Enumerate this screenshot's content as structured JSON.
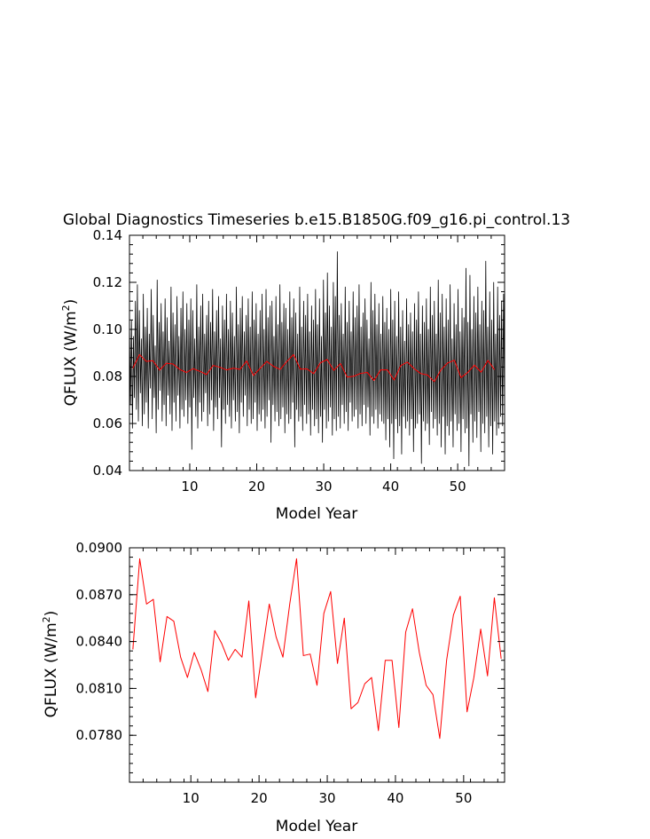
{
  "chart_data": [
    {
      "type": "line",
      "title": "Global Diagnostics Timeseries b.e15.B1850G.f09_g16.pi_control.13",
      "xlabel": "Model Year",
      "ylabel": "QFLUX (W/m",
      "ylabel_sup": "2",
      "ylabel_close": ")",
      "xlim": [
        1,
        57
      ],
      "ylim": [
        0.04,
        0.14
      ],
      "xticks": [
        10,
        20,
        30,
        40,
        50
      ],
      "xtick_labels": [
        "10",
        "20",
        "30",
        "40",
        "50"
      ],
      "yticks": [
        0.04,
        0.06,
        0.08,
        0.1,
        0.12,
        0.14
      ],
      "ytick_labels": [
        "0.04",
        "0.06",
        "0.08",
        "0.10",
        "0.12",
        "0.14"
      ],
      "grid": false,
      "series": [
        {
          "color": "#000000",
          "note_monthly": true,
          "values": [
            0.103,
            0.068,
            0.104,
            0.058,
            0.097,
            0.071,
            0.112,
            0.066,
            0.119,
            0.061,
            0.108,
            0.073,
            0.096,
            0.059,
            0.115,
            0.064,
            0.101,
            0.069,
            0.109,
            0.058,
            0.098,
            0.075,
            0.117,
            0.062,
            0.106,
            0.071,
            0.093,
            0.056,
            0.121,
            0.066,
            0.103,
            0.074,
            0.111,
            0.061,
            0.099,
            0.068,
            0.113,
            0.059,
            0.105,
            0.072,
            0.095,
            0.064,
            0.118,
            0.057,
            0.107,
            0.069,
            0.102,
            0.061,
            0.114,
            0.072,
            0.097,
            0.058,
            0.109,
            0.066,
            0.116,
            0.063,
            0.1,
            0.07,
            0.111,
            0.06,
            0.104,
            0.067,
            0.113,
            0.049,
            0.108,
            0.071,
            0.096,
            0.063,
            0.119,
            0.058,
            0.101,
            0.069,
            0.11,
            0.061,
            0.115,
            0.065,
            0.098,
            0.073,
            0.106,
            0.059,
            0.112,
            0.064,
            0.103,
            0.07,
            0.117,
            0.057,
            0.099,
            0.067,
            0.108,
            0.062,
            0.114,
            0.071,
            0.096,
            0.05,
            0.11,
            0.066,
            0.104,
            0.06,
            0.115,
            0.068,
            0.1,
            0.063,
            0.112,
            0.058,
            0.107,
            0.07,
            0.097,
            0.061,
            0.118,
            0.065,
            0.102,
            0.056,
            0.109,
            0.069,
            0.114,
            0.063,
            0.099,
            0.072,
            0.106,
            0.059,
            0.113,
            0.066,
            0.101,
            0.06,
            0.116,
            0.062,
            0.104,
            0.069,
            0.111,
            0.057,
            0.098,
            0.064,
            0.108,
            0.061,
            0.115,
            0.066,
            0.1,
            0.058,
            0.117,
            0.063,
            0.105,
            0.07,
            0.11,
            0.052,
            0.112,
            0.068,
            0.097,
            0.061,
            0.114,
            0.065,
            0.102,
            0.059,
            0.119,
            0.062,
            0.103,
            0.067,
            0.111,
            0.056,
            0.109,
            0.064,
            0.1,
            0.06,
            0.116,
            0.062,
            0.105,
            0.069,
            0.113,
            0.05,
            0.107,
            0.066,
            0.098,
            0.061,
            0.118,
            0.063,
            0.101,
            0.057,
            0.112,
            0.068,
            0.106,
            0.06,
            0.115,
            0.064,
            0.099,
            0.055,
            0.11,
            0.066,
            0.104,
            0.059,
            0.117,
            0.062,
            0.102,
            0.056,
            0.113,
            0.063,
            0.097,
            0.052,
            0.121,
            0.066,
            0.107,
            0.058,
            0.124,
            0.061,
            0.11,
            0.067,
            0.101,
            0.055,
            0.12,
            0.062,
            0.114,
            0.057,
            0.133,
            0.063,
            0.106,
            0.058,
            0.111,
            0.068,
            0.098,
            0.06,
            0.118,
            0.065,
            0.103,
            0.057,
            0.112,
            0.069,
            0.099,
            0.061,
            0.116,
            0.063,
            0.105,
            0.066,
            0.11,
            0.058,
            0.119,
            0.064,
            0.101,
            0.059,
            0.107,
            0.068,
            0.113,
            0.06,
            0.104,
            0.067,
            0.096,
            0.055,
            0.12,
            0.063,
            0.108,
            0.06,
            0.115,
            0.066,
            0.102,
            0.058,
            0.111,
            0.064,
            0.098,
            0.061,
            0.114,
            0.06,
            0.103,
            0.053,
            0.109,
            0.062,
            0.1,
            0.05,
            0.117,
            0.06,
            0.104,
            0.045,
            0.112,
            0.062,
            0.097,
            0.056,
            0.116,
            0.059,
            0.101,
            0.047,
            0.108,
            0.063,
            0.095,
            0.058,
            0.113,
            0.061,
            0.102,
            0.055,
            0.107,
            0.062,
            0.099,
            0.048,
            0.111,
            0.058,
            0.104,
            0.06,
            0.116,
            0.064,
            0.098,
            0.043,
            0.11,
            0.061,
            0.103,
            0.057,
            0.113,
            0.06,
            0.1,
            0.051,
            0.118,
            0.065,
            0.106,
            0.058,
            0.112,
            0.062,
            0.098,
            0.055,
            0.121,
            0.06,
            0.107,
            0.05,
            0.115,
            0.063,
            0.101,
            0.047,
            0.113,
            0.059,
            0.104,
            0.055,
            0.119,
            0.061,
            0.096,
            0.05,
            0.111,
            0.064,
            0.102,
            0.057,
            0.117,
            0.06,
            0.099,
            0.048,
            0.109,
            0.062,
            0.105,
            0.056,
            0.126,
            0.058,
            0.103,
            0.042,
            0.123,
            0.064,
            0.1,
            0.052,
            0.114,
            0.061,
            0.107,
            0.054,
            0.118,
            0.065,
            0.102,
            0.048,
            0.112,
            0.06,
            0.108,
            0.056,
            0.129,
            0.063,
            0.101,
            0.05,
            0.116,
            0.059,
            0.104,
            0.047,
            0.12,
            0.061,
            0.098,
            0.055,
            0.118,
            0.058,
            0.106,
            0.063,
            0.112,
            0.059,
            0.115,
            0.066
          ]
        },
        {
          "color": "#ff0000",
          "values": [
            0.0835,
            0.0893,
            0.0864,
            0.0867,
            0.0827,
            0.0856,
            0.0853,
            0.083,
            0.0817,
            0.0833,
            0.0822,
            0.0808,
            0.0847,
            0.0839,
            0.0828,
            0.0835,
            0.083,
            0.0866,
            0.0804,
            0.0834,
            0.0864,
            0.0843,
            0.083,
            0.0864,
            0.0893,
            0.0831,
            0.0832,
            0.0812,
            0.0858,
            0.0872,
            0.0826,
            0.0855,
            0.0797,
            0.0801,
            0.0813,
            0.0817,
            0.0783,
            0.0828,
            0.0828,
            0.0785,
            0.0846,
            0.0861,
            0.0833,
            0.0812,
            0.0806,
            0.0778,
            0.0828,
            0.0857,
            0.0869,
            0.0795,
            0.0817,
            0.0848,
            0.0818,
            0.0868,
            0.0829
          ]
        }
      ]
    },
    {
      "type": "line",
      "title": "",
      "xlabel": "Model Year",
      "ylabel": "QFLUX (W/m",
      "ylabel_sup": "2",
      "ylabel_close": ")",
      "xlim": [
        1,
        56
      ],
      "ylim": [
        0.075,
        0.09
      ],
      "xticks": [
        10,
        20,
        30,
        40,
        50
      ],
      "xtick_labels": [
        "10",
        "20",
        "30",
        "40",
        "50"
      ],
      "yticks": [
        0.078,
        0.081,
        0.084,
        0.087,
        0.09
      ],
      "ytick_labels": [
        "0.0780",
        "0.0810",
        "0.0840",
        "0.0870",
        "0.0900"
      ],
      "grid": false,
      "series": [
        {
          "color": "#ff0000",
          "values": [
            0.0835,
            0.0893,
            0.0864,
            0.0867,
            0.0827,
            0.0856,
            0.0853,
            0.083,
            0.0817,
            0.0833,
            0.0822,
            0.0808,
            0.0847,
            0.0839,
            0.0828,
            0.0835,
            0.083,
            0.0866,
            0.0804,
            0.0834,
            0.0864,
            0.0843,
            0.083,
            0.0864,
            0.0893,
            0.0831,
            0.0832,
            0.0812,
            0.0858,
            0.0872,
            0.0826,
            0.0855,
            0.0797,
            0.0801,
            0.0813,
            0.0817,
            0.0783,
            0.0828,
            0.0828,
            0.0785,
            0.0846,
            0.0861,
            0.0833,
            0.0812,
            0.0806,
            0.0778,
            0.0828,
            0.0857,
            0.0869,
            0.0795,
            0.0817,
            0.0848,
            0.0818,
            0.0868,
            0.0829
          ]
        }
      ]
    }
  ]
}
